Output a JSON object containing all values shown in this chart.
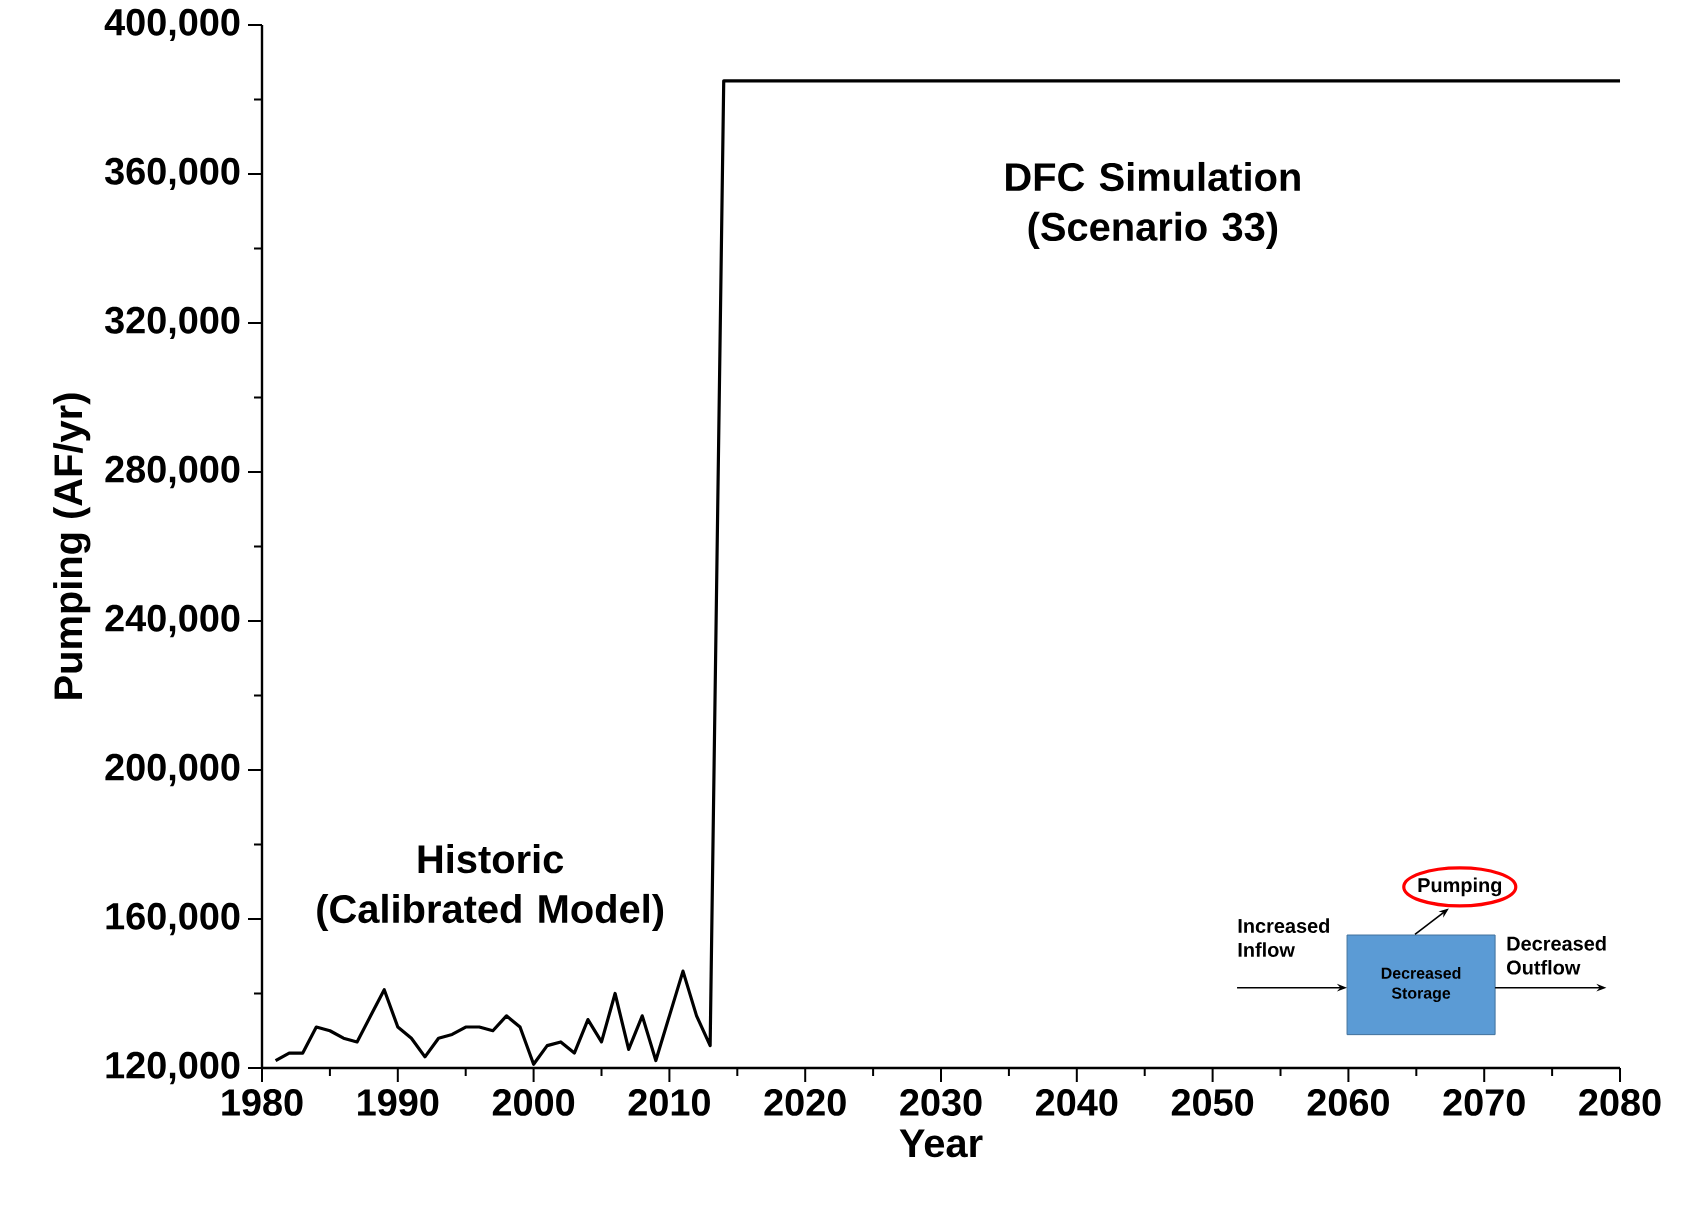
{
  "chart_data": {
    "type": "line",
    "xlabel": "Year",
    "ylabel": "Pumping (AF/yr)",
    "x": [
      1981,
      1982,
      1983,
      1984,
      1985,
      1986,
      1987,
      1988,
      1989,
      1990,
      1991,
      1992,
      1993,
      1994,
      1995,
      1996,
      1997,
      1998,
      1999,
      2000,
      2001,
      2002,
      2003,
      2004,
      2005,
      2006,
      2007,
      2008,
      2009,
      2010,
      2011,
      2012,
      2013,
      2014,
      2080
    ],
    "series": [
      {
        "color": "#000000",
        "values": [
          122000,
          124000,
          124000,
          131000,
          130000,
          128000,
          127000,
          134000,
          141000,
          131000,
          128000,
          123000,
          128000,
          129000,
          131000,
          131000,
          130000,
          134000,
          131000,
          121000,
          126000,
          127000,
          124000,
          133000,
          127000,
          140000,
          125000,
          134000,
          122000,
          134000,
          146000,
          134000,
          126000,
          385000,
          385000
        ]
      }
    ],
    "xlim": [
      1980,
      2080
    ],
    "xticks": [
      1980,
      1990,
      2000,
      2010,
      2020,
      2030,
      2040,
      2050,
      2060,
      2070,
      2080
    ],
    "ylim": [
      120000,
      400000
    ],
    "yticks": [
      {
        "value": 120000,
        "label": "120,000"
      },
      {
        "value": 160000,
        "label": "160,000"
      },
      {
        "value": 200000,
        "label": "200,000"
      },
      {
        "value": 240000,
        "label": "240,000"
      },
      {
        "value": 280000,
        "label": "280,000"
      },
      {
        "value": 320000,
        "label": "320,000"
      },
      {
        "value": 360000,
        "label": "360,000"
      },
      {
        "value": 400000,
        "label": "400,000"
      }
    ],
    "annotations": [
      "Historic (Calibrated Model)",
      "DFC Simulation (Scenario 33)",
      "Increased Inflow",
      "Decreased Storage",
      "Pumping",
      "Decreased Outflow"
    ]
  }
}
